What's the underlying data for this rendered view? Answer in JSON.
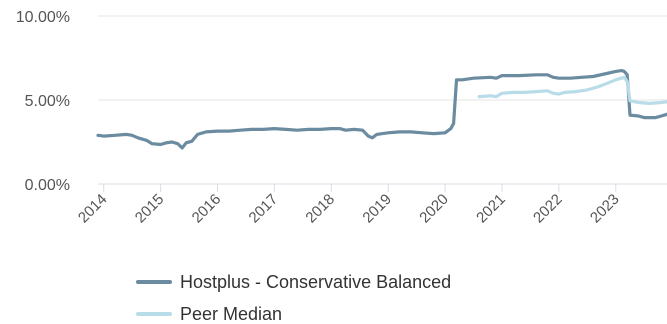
{
  "chart_data": {
    "type": "line",
    "title": "",
    "xlabel": "",
    "ylabel": "",
    "x_start": 2013.9,
    "x_end": 2023.9,
    "xlim": [
      2013.9,
      2023.9
    ],
    "ylim": [
      0,
      10
    ],
    "y_ticks": [
      0,
      5,
      10
    ],
    "y_tick_labels": [
      "0.00%",
      "5.00%",
      "10.00%"
    ],
    "x_ticks": [
      2014,
      2015,
      2016,
      2017,
      2018,
      2019,
      2020,
      2021,
      2022,
      2023
    ],
    "x_tick_labels": [
      "2014",
      "2015",
      "2016",
      "2017",
      "2018",
      "2019",
      "2020",
      "2021",
      "2022",
      "2023"
    ],
    "grid": true,
    "legend_position": "bottom-left",
    "series": [
      {
        "name": "Hostplus - Conservative Balanced",
        "color": "#6b8ba0",
        "points": [
          [
            2013.9,
            2.9
          ],
          [
            2014.0,
            2.85
          ],
          [
            2014.2,
            2.9
          ],
          [
            2014.4,
            2.95
          ],
          [
            2014.5,
            2.9
          ],
          [
            2014.6,
            2.75
          ],
          [
            2014.75,
            2.6
          ],
          [
            2014.85,
            2.4
          ],
          [
            2015.0,
            2.35
          ],
          [
            2015.1,
            2.45
          ],
          [
            2015.2,
            2.5
          ],
          [
            2015.3,
            2.4
          ],
          [
            2015.38,
            2.15
          ],
          [
            2015.45,
            2.45
          ],
          [
            2015.55,
            2.55
          ],
          [
            2015.65,
            2.95
          ],
          [
            2015.8,
            3.1
          ],
          [
            2016.0,
            3.15
          ],
          [
            2016.2,
            3.15
          ],
          [
            2016.4,
            3.2
          ],
          [
            2016.6,
            3.25
          ],
          [
            2016.8,
            3.25
          ],
          [
            2017.0,
            3.3
          ],
          [
            2017.2,
            3.25
          ],
          [
            2017.4,
            3.2
          ],
          [
            2017.6,
            3.25
          ],
          [
            2017.8,
            3.25
          ],
          [
            2018.0,
            3.3
          ],
          [
            2018.15,
            3.3
          ],
          [
            2018.25,
            3.2
          ],
          [
            2018.4,
            3.25
          ],
          [
            2018.55,
            3.2
          ],
          [
            2018.65,
            2.85
          ],
          [
            2018.72,
            2.75
          ],
          [
            2018.8,
            2.95
          ],
          [
            2019.0,
            3.05
          ],
          [
            2019.2,
            3.1
          ],
          [
            2019.4,
            3.1
          ],
          [
            2019.6,
            3.05
          ],
          [
            2019.8,
            3.0
          ],
          [
            2020.0,
            3.05
          ],
          [
            2020.1,
            3.3
          ],
          [
            2020.15,
            3.6
          ],
          [
            2020.2,
            6.2
          ],
          [
            2020.3,
            6.2
          ],
          [
            2020.5,
            6.3
          ],
          [
            2020.8,
            6.35
          ],
          [
            2020.9,
            6.3
          ],
          [
            2021.0,
            6.45
          ],
          [
            2021.3,
            6.45
          ],
          [
            2021.6,
            6.5
          ],
          [
            2021.8,
            6.5
          ],
          [
            2021.9,
            6.35
          ],
          [
            2022.0,
            6.3
          ],
          [
            2022.2,
            6.3
          ],
          [
            2022.4,
            6.35
          ],
          [
            2022.6,
            6.4
          ],
          [
            2022.8,
            6.55
          ],
          [
            2023.0,
            6.7
          ],
          [
            2023.1,
            6.75
          ],
          [
            2023.15,
            6.7
          ],
          [
            2023.2,
            6.5
          ],
          [
            2023.25,
            4.1
          ],
          [
            2023.4,
            4.05
          ],
          [
            2023.5,
            3.95
          ],
          [
            2023.7,
            3.95
          ],
          [
            2023.8,
            4.05
          ],
          [
            2023.9,
            4.15
          ]
        ]
      },
      {
        "name": "Peer Median",
        "color": "#b8dce8",
        "points": [
          [
            2020.6,
            5.2
          ],
          [
            2020.8,
            5.25
          ],
          [
            2020.9,
            5.2
          ],
          [
            2021.0,
            5.4
          ],
          [
            2021.2,
            5.45
          ],
          [
            2021.4,
            5.45
          ],
          [
            2021.6,
            5.5
          ],
          [
            2021.8,
            5.55
          ],
          [
            2021.9,
            5.4
          ],
          [
            2022.0,
            5.35
          ],
          [
            2022.1,
            5.45
          ],
          [
            2022.3,
            5.5
          ],
          [
            2022.5,
            5.6
          ],
          [
            2022.7,
            5.8
          ],
          [
            2022.85,
            6.0
          ],
          [
            2023.0,
            6.2
          ],
          [
            2023.15,
            6.35
          ],
          [
            2023.2,
            6.1
          ],
          [
            2023.25,
            4.95
          ],
          [
            2023.4,
            4.85
          ],
          [
            2023.6,
            4.8
          ],
          [
            2023.8,
            4.85
          ],
          [
            2023.9,
            4.9
          ]
        ]
      }
    ]
  }
}
